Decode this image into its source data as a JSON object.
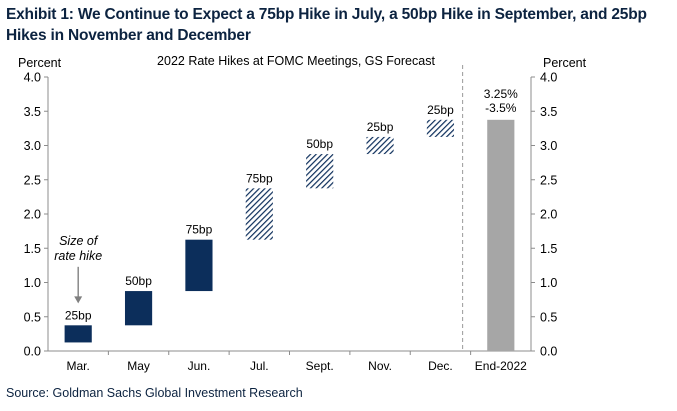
{
  "exhibit": {
    "title": "Exhibit 1: We Continue to Expect a 75bp Hike in July, a 50bp Hike in September, and 25bp Hikes in November and December",
    "source": "Source: Goldman Sachs Global Investment Research"
  },
  "chart_data": {
    "type": "bar",
    "title": "2022 Rate Hikes at FOMC Meetings, GS Forecast",
    "ylabel_left": "Percent",
    "ylabel_right": "Percent",
    "ylim": [
      0,
      4.0
    ],
    "yticks": [
      "0.0",
      "0.5",
      "1.0",
      "1.5",
      "2.0",
      "2.5",
      "3.0",
      "3.5",
      "4.0"
    ],
    "categories": [
      "Mar.",
      "May",
      "Jun.",
      "Jul.",
      "Sept.",
      "Nov.",
      "Dec.",
      "End-2022"
    ],
    "segments": [
      {
        "category": "Mar.",
        "low": 0.125,
        "high": 0.375,
        "label": "25bp",
        "style": "actual"
      },
      {
        "category": "May",
        "low": 0.375,
        "high": 0.875,
        "label": "50bp",
        "style": "actual"
      },
      {
        "category": "Jun.",
        "low": 0.875,
        "high": 1.625,
        "label": "75bp",
        "style": "actual"
      },
      {
        "category": "Jul.",
        "low": 1.625,
        "high": 2.375,
        "label": "75bp",
        "style": "forecast"
      },
      {
        "category": "Sept.",
        "low": 2.375,
        "high": 2.875,
        "label": "50bp",
        "style": "forecast"
      },
      {
        "category": "Nov.",
        "low": 2.875,
        "high": 3.125,
        "label": "25bp",
        "style": "forecast"
      },
      {
        "category": "Dec.",
        "low": 3.125,
        "high": 3.375,
        "label": "25bp",
        "style": "forecast"
      },
      {
        "category": "End-2022",
        "low": 0,
        "high": 3.375,
        "label_lines": [
          "3.25%",
          "-3.5%"
        ],
        "style": "total"
      }
    ],
    "annotation": {
      "lines": [
        "Size of",
        "rate hike"
      ],
      "points_to": "Mar."
    },
    "colors": {
      "actual": "#0c2e5b",
      "forecast": "#0c2e5b",
      "total": "#a6a6a6",
      "title_text": "#0c2340"
    },
    "divider": {
      "position": "before End-2022",
      "style": "dashed"
    },
    "grid": false
  }
}
